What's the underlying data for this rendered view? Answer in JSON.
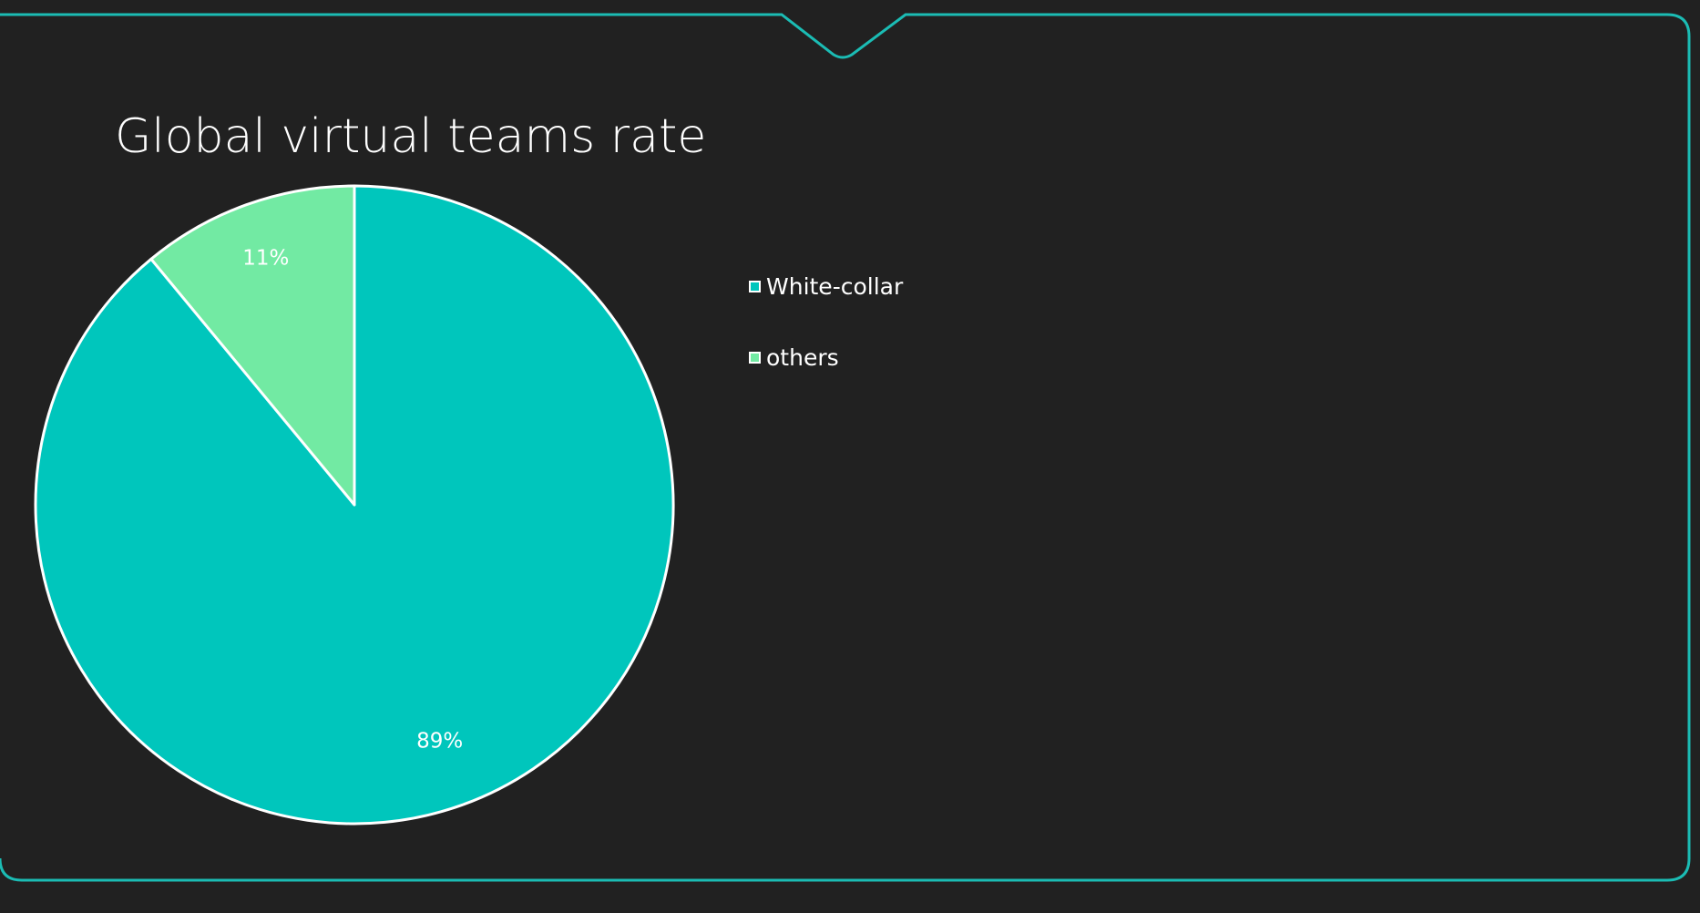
{
  "slide": {
    "frame_color": "#1bbcb4",
    "background_color": "#212121"
  },
  "chart_data": {
    "type": "pie",
    "title": "Global virtual teams rate",
    "categories": [
      "White-collar",
      "others"
    ],
    "values": [
      89,
      11
    ],
    "data_labels": [
      "89%",
      "11%"
    ],
    "colors": [
      "#00c6bc",
      "#72eaa3"
    ],
    "start_angle_deg": 0,
    "direction": "clockwise",
    "legend_position": "right",
    "slice_border_color": "#ffffff"
  }
}
